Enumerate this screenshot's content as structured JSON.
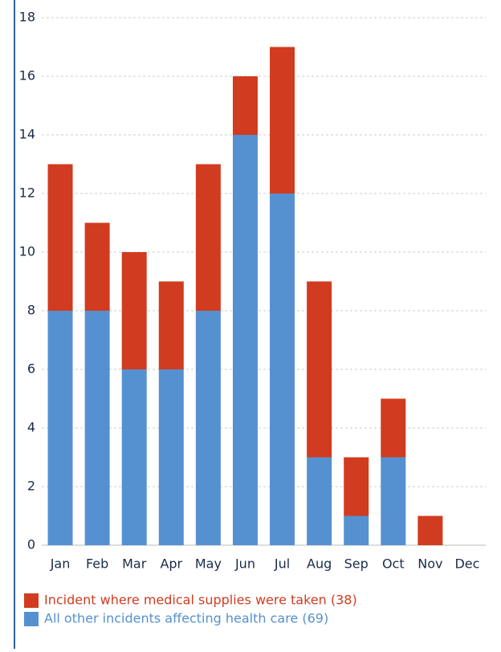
{
  "chart_data": {
    "type": "stacked_bar",
    "categories": [
      "Jan",
      "Feb",
      "Mar",
      "Apr",
      "May",
      "Jun",
      "Jul",
      "Aug",
      "Sep",
      "Oct",
      "Nov",
      "Dec"
    ],
    "series": [
      {
        "name": "Incident where medical supplies were taken (38)",
        "color": "#d13b1f",
        "values": [
          5,
          3,
          4,
          3,
          5,
          2,
          5,
          6,
          2,
          2,
          1,
          0
        ]
      },
      {
        "name": "All other incidents affecting health care (69)",
        "color": "#5591d0",
        "values": [
          8,
          8,
          6,
          6,
          8,
          14,
          12,
          3,
          1,
          3,
          0,
          0
        ]
      }
    ],
    "ylim": [
      0,
      18
    ],
    "yticks": [
      0,
      2,
      4,
      6,
      8,
      10,
      12,
      14,
      16,
      18
    ],
    "grid": true,
    "legend": "bottom"
  }
}
